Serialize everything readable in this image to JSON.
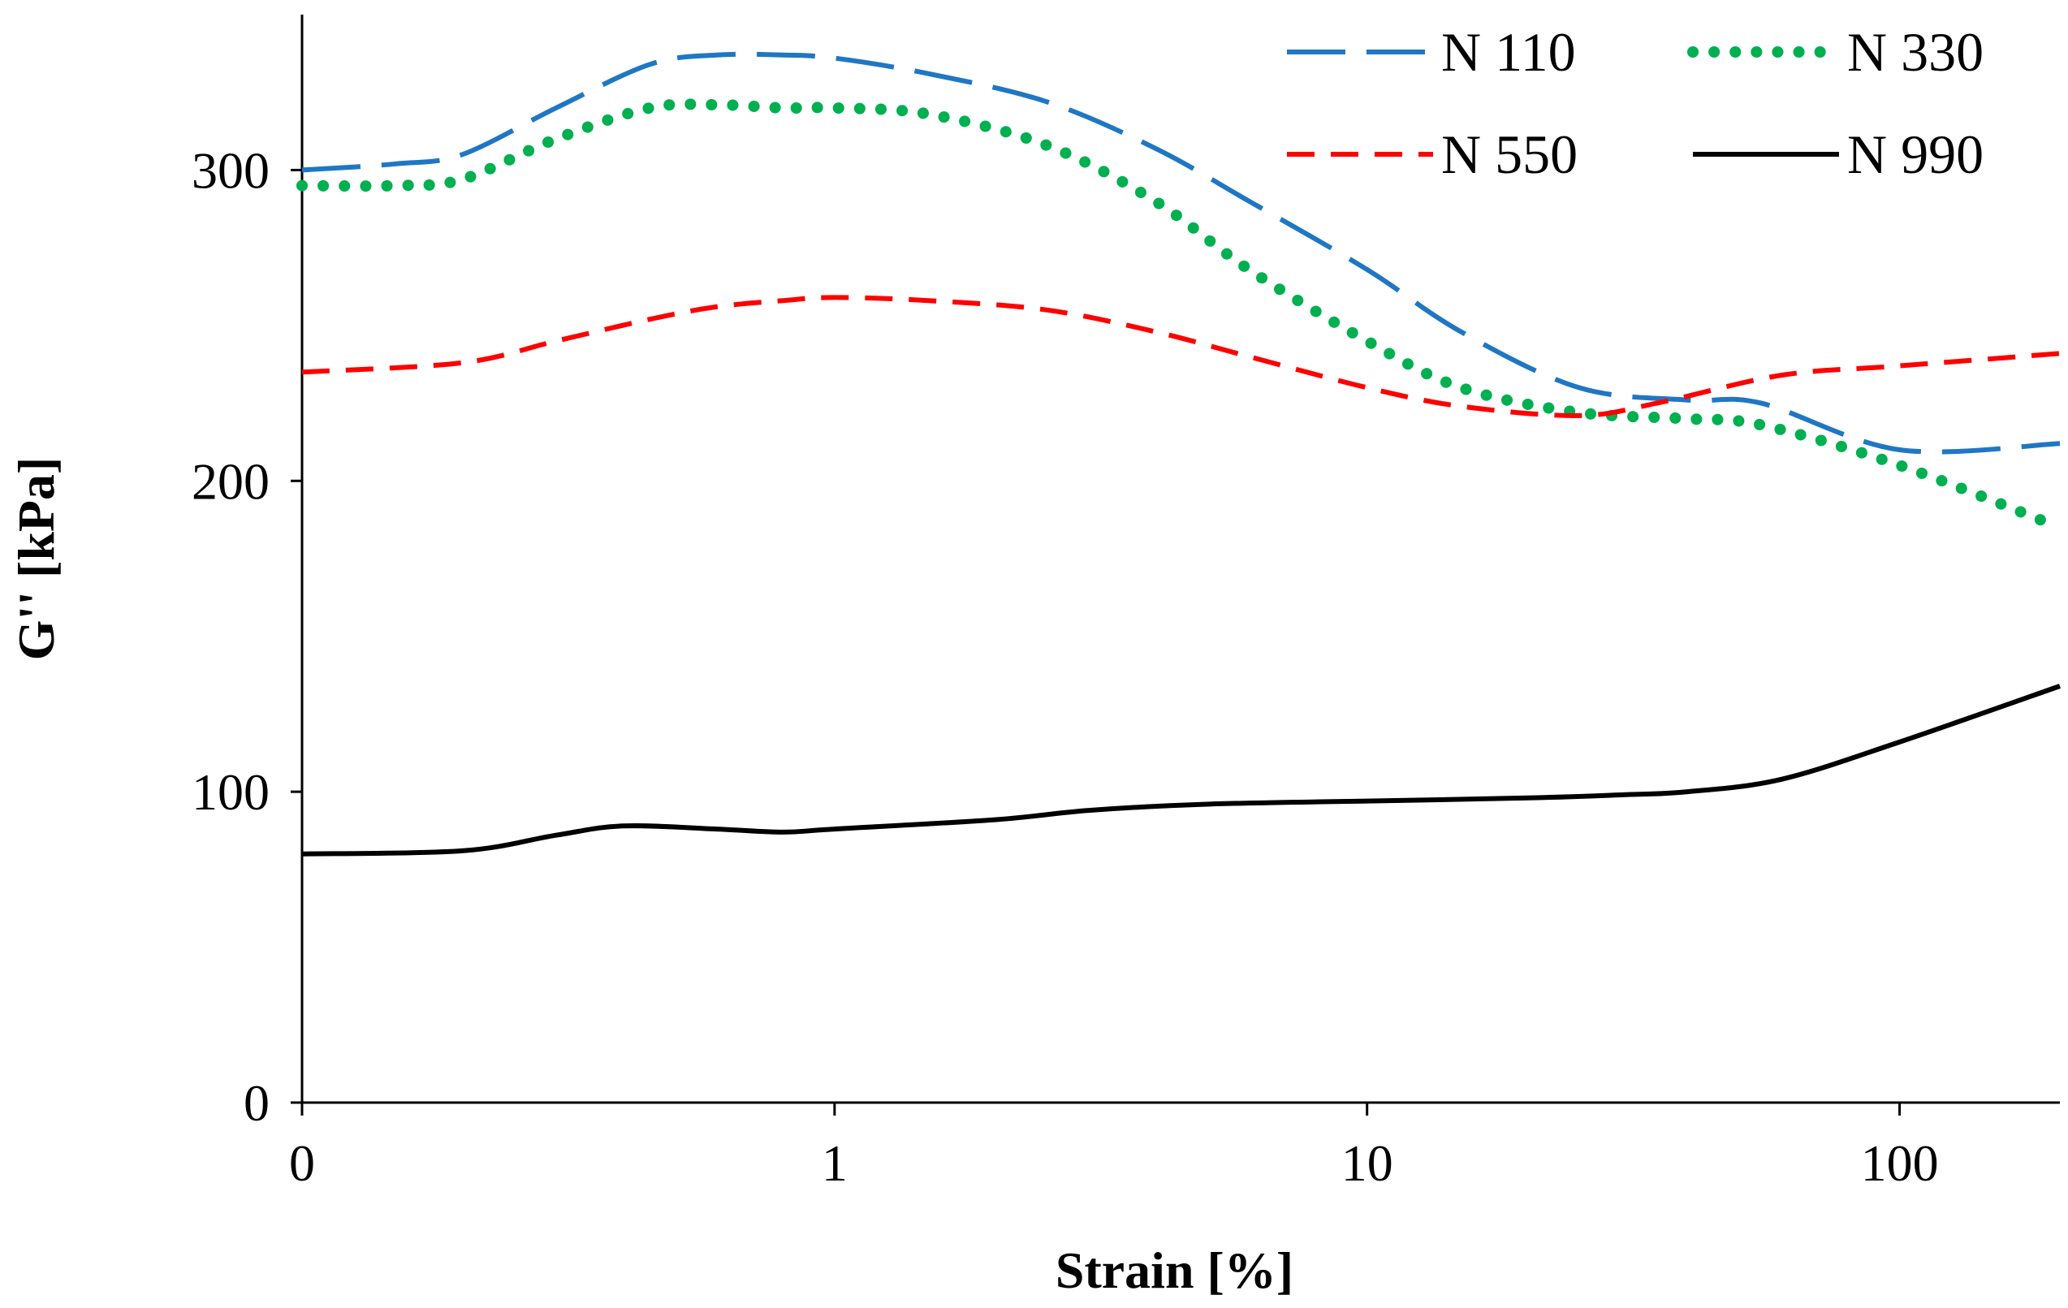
{
  "chart_data": {
    "type": "line",
    "title": "",
    "xlabel": "Strain  [%]",
    "ylabel": "G'' [kPa]",
    "xscale": "log",
    "xlim": [
      0.1,
      200
    ],
    "ylim": [
      0,
      350
    ],
    "x_ticks": [
      {
        "value": 0.1,
        "label": "0"
      },
      {
        "value": 1,
        "label": "1"
      },
      {
        "value": 10,
        "label": "10"
      },
      {
        "value": 100,
        "label": "100"
      }
    ],
    "y_ticks": [
      {
        "value": 0,
        "label": "0"
      },
      {
        "value": 100,
        "label": "100"
      },
      {
        "value": 200,
        "label": "200"
      },
      {
        "value": 300,
        "label": "300"
      }
    ],
    "grid": false,
    "legend": "top-right",
    "series": [
      {
        "name": "N 110",
        "color": "#1f77c4",
        "style": "long-dash",
        "x": [
          0.1,
          0.15,
          0.2,
          0.3,
          0.45,
          0.6,
          0.8,
          1.0,
          1.5,
          2.5,
          4,
          6,
          10,
          15,
          25,
          40,
          55,
          100,
          200
        ],
        "y": [
          300,
          302,
          305,
          320,
          334,
          337,
          337,
          336,
          331,
          322,
          307,
          290,
          268,
          248,
          230,
          226,
          225,
          210,
          212
        ]
      },
      {
        "name": "N 330",
        "color": "#00b050",
        "style": "dotted",
        "x": [
          0.1,
          0.15,
          0.2,
          0.3,
          0.45,
          0.6,
          0.8,
          1.0,
          1.5,
          2.5,
          4,
          6,
          10,
          15,
          25,
          40,
          55,
          100,
          200
        ],
        "y": [
          295,
          295,
          297,
          310,
          320,
          321,
          320,
          320,
          318,
          308,
          290,
          268,
          245,
          230,
          222,
          220,
          218,
          205,
          185
        ]
      },
      {
        "name": "N 550",
        "color": "#ff0000",
        "style": "short-dash",
        "x": [
          0.1,
          0.2,
          0.3,
          0.45,
          0.6,
          0.8,
          1.0,
          1.5,
          2.5,
          4,
          6,
          10,
          15,
          25,
          35,
          60,
          100,
          200
        ],
        "y": [
          235,
          238,
          245,
          252,
          256,
          258,
          259,
          258,
          255,
          248,
          240,
          230,
          224,
          221,
          225,
          234,
          237,
          241
        ]
      },
      {
        "name": "N 990",
        "color": "#000000",
        "style": "solid",
        "x": [
          0.1,
          0.2,
          0.3,
          0.4,
          0.6,
          0.8,
          1.0,
          2.0,
          3.0,
          5.0,
          10,
          20,
          30,
          40,
          60,
          100,
          200
        ],
        "y": [
          80,
          81,
          86,
          89,
          88,
          87,
          88,
          91,
          94,
          96,
          97,
          98,
          99,
          100,
          104,
          116,
          134
        ]
      }
    ]
  }
}
